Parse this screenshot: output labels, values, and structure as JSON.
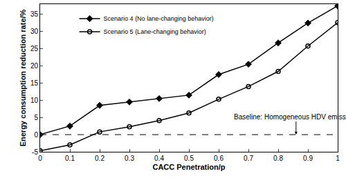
{
  "chart_data": {
    "type": "line",
    "x_label": "CACC Penetration/p",
    "y_label": "Energy consumption reduction rate/%",
    "x": [
      0,
      0.1,
      0.2,
      0.3,
      0.4,
      0.5,
      0.6,
      0.7,
      0.8,
      0.9,
      1
    ],
    "series": [
      {
        "name": "Scenario 4 (No lane-changing behavior)",
        "color": "#000000",
        "marker": "diamond",
        "line_style": "solid",
        "values": [
          0,
          2.5,
          8.5,
          9.5,
          10.5,
          11.5,
          17.5,
          20.5,
          26.7,
          32.5,
          37.5
        ]
      },
      {
        "name": "Scenario 5 (Lane-changing behavior)",
        "color": "#000000",
        "marker": "circle-open",
        "line_style": "solid",
        "values": [
          -4.7,
          -3.0,
          0.8,
          2.3,
          4.1,
          6.3,
          10.3,
          14.0,
          18.4,
          25.8,
          32.6
        ]
      }
    ],
    "baseline": {
      "value": 0,
      "line_style": "dash",
      "color": "#000000"
    },
    "annotations": [
      {
        "text": "Baseline: Homogeneous HDV emissions",
        "x": 0.86,
        "y": 0
      }
    ],
    "xlim": [
      0,
      1
    ],
    "xticks": [
      0,
      0.1,
      0.2,
      0.3,
      0.4,
      0.5,
      0.6,
      0.7,
      0.8,
      0.9,
      1
    ],
    "ylim": [
      -5,
      38
    ],
    "yticks": [
      -5,
      0,
      5,
      10,
      15,
      20,
      25,
      30,
      35
    ],
    "grid": false,
    "legend": "top left"
  }
}
